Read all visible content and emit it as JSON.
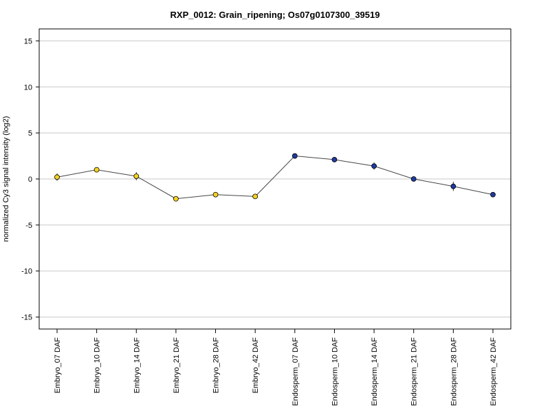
{
  "chart_data": {
    "type": "line",
    "title": "RXP_0012: Grain_ripening; Os07g0107300_39519",
    "xlabel": "",
    "ylabel": "normalized Cy3 signal intensity (log2)",
    "ylim": [
      -16.3,
      16.3
    ],
    "yticks": [
      -15,
      -10,
      -5,
      0,
      5,
      10,
      15
    ],
    "grid": true,
    "categories": [
      "Embryo_07 DAF",
      "Embryo_10 DAF",
      "Embryo_14 DAF",
      "Embryo_21 DAF",
      "Embryo_28 DAF",
      "Embryo_42 DAF",
      "Endosperm_07 DAF",
      "Endosperm_10 DAF",
      "Endosperm_14 DAF",
      "Endosperm_21 DAF",
      "Endosperm_28 DAF",
      "Endosperm_42 DAF"
    ],
    "values": [
      0.2,
      1.0,
      0.3,
      -2.15,
      -1.7,
      -1.9,
      2.5,
      2.1,
      1.4,
      0.0,
      -0.8,
      -1.7
    ],
    "error": [
      0.4,
      0.2,
      0.45,
      0.2,
      0.2,
      0.15,
      0.1,
      0.1,
      0.4,
      0.1,
      0.5,
      0.15
    ],
    "colors": [
      "#f5d21f",
      "#f5d21f",
      "#f5d21f",
      "#f5d21f",
      "#f5d21f",
      "#f5d21f",
      "#1f3aa0",
      "#1f3aa0",
      "#1f3aa0",
      "#1f3aa0",
      "#1f3aa0",
      "#1f3aa0"
    ],
    "line_color": "#444444",
    "grid_color": "#c8c8c8"
  }
}
